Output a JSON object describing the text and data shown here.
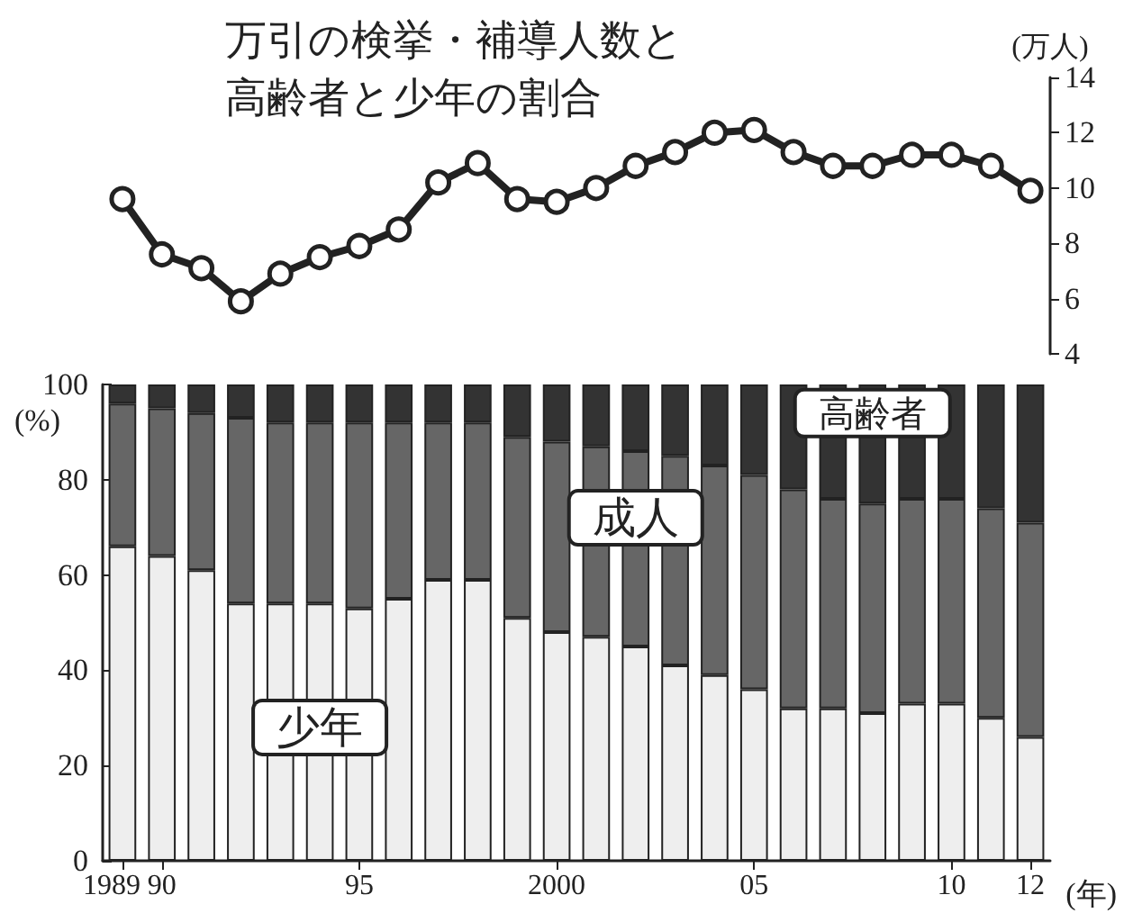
{
  "chart_data": [
    {
      "type": "line",
      "title": "万引の検挙・補導人数と高齢者と少年の割合",
      "ylabel": "(万人)",
      "categories": [
        "1989",
        "90",
        null,
        null,
        null,
        null,
        "95",
        null,
        null,
        null,
        null,
        "2000",
        null,
        null,
        null,
        null,
        "05",
        null,
        null,
        null,
        null,
        "10",
        null,
        "12"
      ],
      "series": [
        {
          "color": "#222222",
          "values": [
            9.6,
            7.6,
            7.1,
            5.9,
            6.9,
            7.5,
            7.9,
            8.5,
            10.2,
            10.9,
            9.6,
            9.5,
            10.0,
            10.8,
            11.3,
            12.0,
            12.1,
            11.3,
            10.8,
            10.8,
            11.2,
            11.2,
            10.8,
            9.9
          ]
        }
      ],
      "ylim": [
        4,
        14
      ],
      "yticks": [
        4,
        6,
        8,
        10,
        12,
        14
      ],
      "tick_labels": "y",
      "marker": "circle"
    },
    {
      "type": "bar",
      "stacked": true,
      "ylabel": "(%)",
      "xlabel": "(年)",
      "categories": [
        "1989",
        "90",
        null,
        null,
        null,
        null,
        "95",
        null,
        null,
        null,
        null,
        "2000",
        null,
        null,
        null,
        null,
        "05",
        null,
        null,
        null,
        null,
        "10",
        null,
        "12"
      ],
      "series": [
        {
          "name": "少年",
          "color": "#eeeeee",
          "values": [
            66,
            64,
            61,
            54,
            54,
            54,
            53,
            55,
            59,
            59,
            51,
            48,
            47,
            45,
            41,
            39,
            36,
            32,
            32,
            31,
            33,
            33,
            30,
            26
          ]
        },
        {
          "name": "成人",
          "color": "#666666",
          "values": [
            30,
            31,
            33,
            39,
            38,
            38,
            39,
            37,
            33,
            33,
            38,
            40,
            40,
            41,
            44,
            44,
            45,
            46,
            44,
            44,
            43,
            43,
            44,
            45
          ]
        },
        {
          "name": "高齢者",
          "color": "#333333",
          "values": [
            4,
            5,
            6,
            7,
            8,
            8,
            8,
            8,
            8,
            8,
            11,
            12,
            13,
            14,
            15,
            17,
            19,
            22,
            24,
            25,
            24,
            24,
            26,
            29
          ]
        }
      ],
      "ylim": [
        0,
        100
      ],
      "yticks": [
        0,
        20,
        40,
        60,
        80,
        100
      ]
    }
  ]
}
